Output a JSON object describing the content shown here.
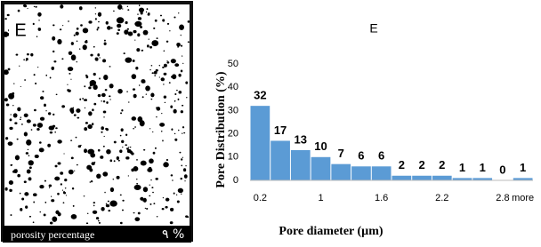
{
  "image_panel": {
    "label": "E",
    "caption": "porosity percentage",
    "value_text": "٩ %"
  },
  "chart_data": {
    "type": "bar",
    "title": "E",
    "x_label": "Pore diameter (µm)",
    "y_label": "Pore Distribution (%)",
    "categories": [
      "0.2",
      null,
      null,
      "1",
      null,
      null,
      "1.6",
      null,
      null,
      "2.2",
      null,
      null,
      "2.8",
      "more"
    ],
    "values": [
      32,
      17,
      13,
      10,
      7,
      6,
      6,
      2,
      2,
      2,
      1,
      1,
      0,
      1
    ],
    "color": "#5b9bd5",
    "ylim": [
      0,
      50
    ],
    "yticks": [
      0,
      10,
      20,
      30,
      40,
      50
    ],
    "grid": false
  }
}
